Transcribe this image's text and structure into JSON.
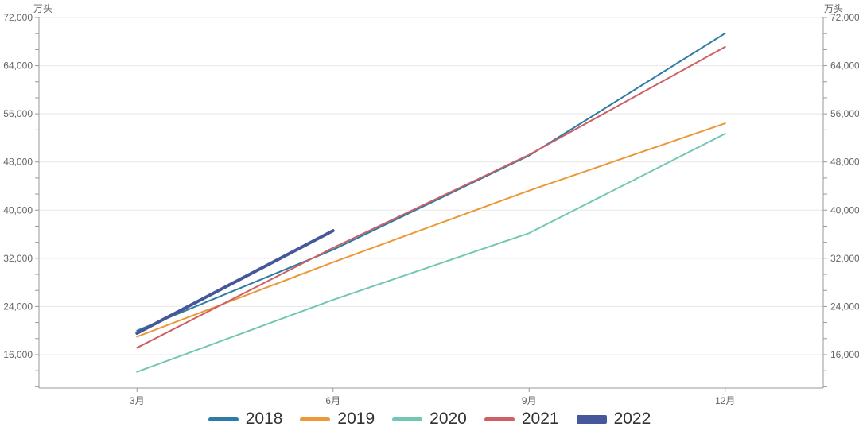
{
  "chart_data": {
    "type": "line",
    "title": "",
    "y_axis_name": "万头",
    "dual_y_axis": true,
    "grid": true,
    "legend_position": "bottom",
    "categories": [
      "3月",
      "6月",
      "9月",
      "12月"
    ],
    "series": [
      {
        "name": "2018",
        "color": "#2e7ba3",
        "line_width": 2,
        "values": [
          19983,
          33422,
          49066,
          69382
        ]
      },
      {
        "name": "2019",
        "color": "#ec9838",
        "line_width": 2,
        "values": [
          18983,
          31346,
          43251,
          54419
        ]
      },
      {
        "name": "2020",
        "color": "#72c7b4",
        "line_width": 2,
        "values": [
          13129,
          25103,
          36186,
          52704
        ]
      },
      {
        "name": "2021",
        "color": "#cc6065",
        "line_width": 2,
        "values": [
          17143,
          33742,
          49193,
          67128
        ]
      },
      {
        "name": "2022",
        "color": "#47589a",
        "line_width": 4,
        "values": [
          19566,
          36587,
          null,
          null
        ]
      }
    ],
    "y_ticks": [
      16000,
      24000,
      32000,
      40000,
      48000,
      56000,
      64000,
      72000
    ],
    "y_tick_labels": [
      "16,000",
      "24,000",
      "32,000",
      "40,000",
      "48,000",
      "56,000",
      "64,000",
      "72,000"
    ],
    "ylim": [
      10450,
      72000
    ],
    "colors": {
      "grid_line": "#e8e8e8",
      "axis_line": "#999999",
      "axis_label": "#666666",
      "legend_text": "#333333",
      "background": "#ffffff"
    }
  }
}
